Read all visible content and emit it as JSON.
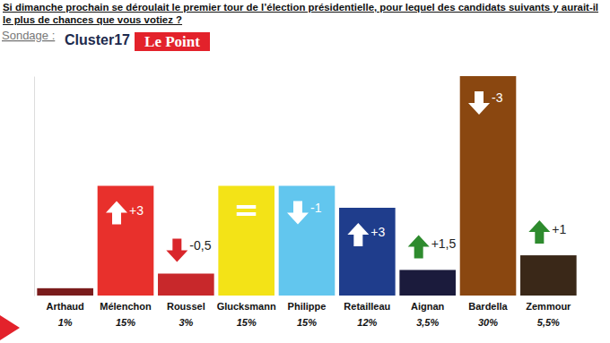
{
  "chart_data": {
    "type": "bar",
    "title": "Si dimanche prochain se déroulait le premier tour de l’élection présidentielle, pour lequel des candidats suivants y aurait-il le plus de chances que vous votiez ?",
    "subtitle": "Sondage :",
    "sources": [
      "Cluster17",
      "Le Point"
    ],
    "categories": [
      "Arthaud",
      "Mélenchon",
      "Roussel",
      "Glucksmann",
      "Philippe",
      "Retailleau",
      "Aignan",
      "Bardella",
      "Zemmour"
    ],
    "values": [
      1,
      15,
      3,
      15,
      15,
      12,
      3.5,
      30,
      5.5
    ],
    "value_labels": [
      "1%",
      "15%",
      "3%",
      "15%",
      "15%",
      "12%",
      "3,5%",
      "30%",
      "5,5%"
    ],
    "colors": [
      "#7a1c1c",
      "#e8302c",
      "#c8282b",
      "#f3e317",
      "#62c6ee",
      "#1f3d8c",
      "#1b1b3c",
      "#8a4710",
      "#3a2818"
    ],
    "changes": [
      null,
      3,
      -0.5,
      0,
      -1,
      3,
      1.5,
      -3,
      1
    ],
    "change_labels": [
      null,
      "+3",
      "-0,5",
      "=",
      "-1",
      "+3",
      "+1,5",
      "-3",
      "+1"
    ],
    "ylim": [
      0,
      30
    ],
    "data_labels": true,
    "tick_labels": "x",
    "grid": false
  }
}
